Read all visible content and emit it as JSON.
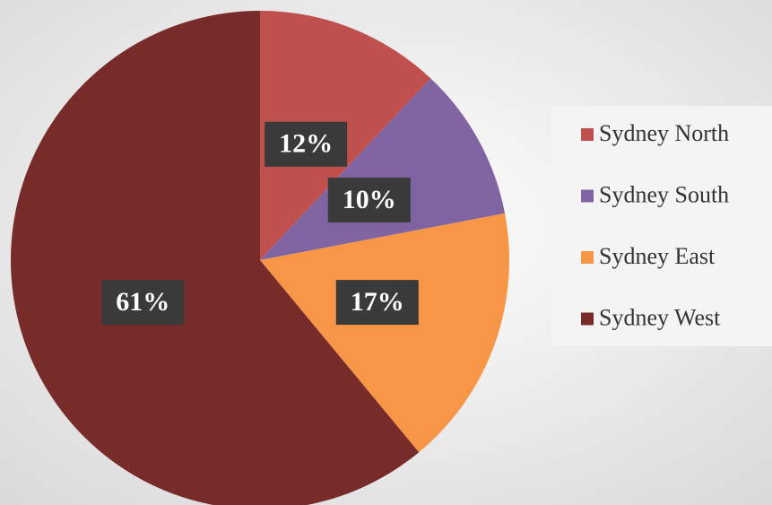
{
  "chart_data": {
    "type": "pie",
    "categories": [
      "Sydney North",
      "Sydney South",
      "Sydney East",
      "Sydney West"
    ],
    "values": [
      12,
      10,
      17,
      61
    ],
    "value_labels": [
      "12%",
      "10%",
      "17%",
      "61%"
    ],
    "colors": [
      "#c0504d",
      "#8064a2",
      "#f79646",
      "#772c2a"
    ],
    "legend": "right"
  }
}
